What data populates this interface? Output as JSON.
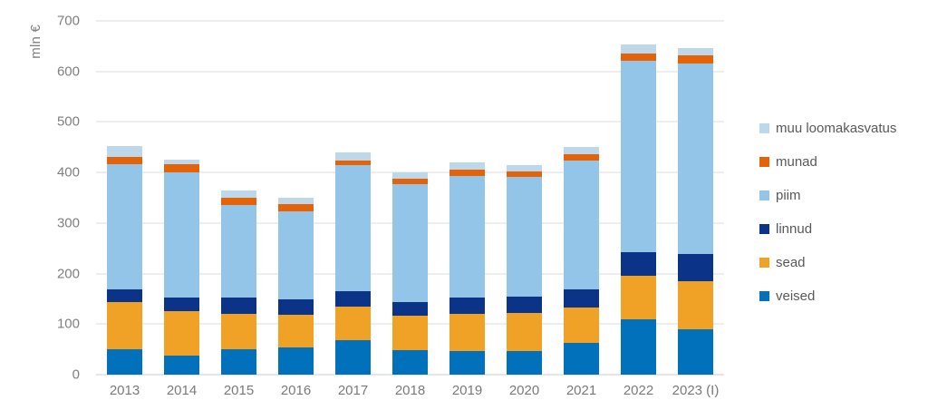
{
  "chart_data": {
    "type": "bar",
    "stacked": true,
    "ylabel": "mln €",
    "xlabel": "",
    "title": "",
    "ylim": [
      0,
      700
    ],
    "y_ticks": [
      0,
      100,
      200,
      300,
      400,
      500,
      600,
      700
    ],
    "grid": true,
    "legend_position": "right",
    "categories": [
      "2013",
      "2014",
      "2015",
      "2016",
      "2017",
      "2018",
      "2019",
      "2020",
      "2021",
      "2022",
      "2023 (I)"
    ],
    "series": [
      {
        "name": "veised",
        "color": "#0071ba",
        "values": [
          51,
          37,
          50,
          54,
          68,
          49,
          46,
          47,
          62,
          110,
          90
        ]
      },
      {
        "name": "sead",
        "color": "#f0a226",
        "values": [
          92,
          88,
          71,
          64,
          66,
          67,
          75,
          76,
          70,
          86,
          95
        ]
      },
      {
        "name": "linnud",
        "color": "#0b3387",
        "values": [
          25,
          27,
          32,
          31,
          31,
          28,
          31,
          31,
          36,
          47,
          53
        ]
      },
      {
        "name": "piim",
        "color": "#92c5e8",
        "values": [
          248,
          249,
          183,
          175,
          249,
          233,
          242,
          238,
          255,
          378,
          377
        ]
      },
      {
        "name": "munad",
        "color": "#e46309",
        "values": [
          15,
          15,
          14,
          13,
          10,
          11,
          12,
          11,
          14,
          15,
          17
        ]
      },
      {
        "name": "muu loomakasvatus",
        "color": "#bdd8eb",
        "values": [
          21,
          10,
          15,
          13,
          16,
          12,
          14,
          12,
          14,
          18,
          15
        ]
      }
    ],
    "legend_order": [
      "muu loomakasvatus",
      "munad",
      "piim",
      "linnud",
      "sead",
      "veised"
    ],
    "totals": [
      452,
      426,
      365,
      350,
      440,
      400,
      420,
      415,
      451,
      654,
      647
    ]
  },
  "colors": {
    "gridline": "#dcdcdc",
    "axis_text": "#7f7f7f",
    "legend_text": "#595959",
    "background": "#ffffff"
  }
}
